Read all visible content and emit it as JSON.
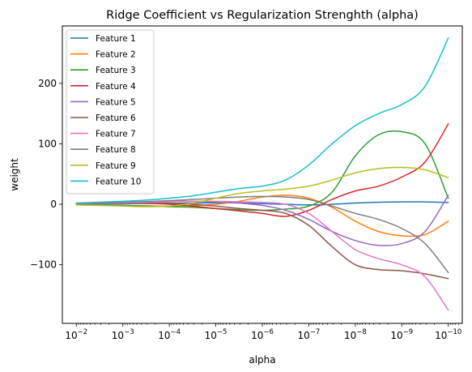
{
  "chart_data": {
    "type": "line",
    "title": "Ridge Coefficient vs Regularization Strenghth (alpha)",
    "xlabel": "alpha",
    "ylabel": "weight",
    "x_scale": "log",
    "x_inverted": true,
    "xlim": [
      0.02,
      5e-11
    ],
    "ylim": [
      -197,
      295
    ],
    "x_ticks": [
      0.01,
      0.001,
      0.0001,
      1e-05,
      1e-06,
      1e-07,
      1e-08,
      1e-09,
      1e-10
    ],
    "x_tick_labels": [
      {
        "base": "10",
        "exp": "−2"
      },
      {
        "base": "10",
        "exp": "−3"
      },
      {
        "base": "10",
        "exp": "−4"
      },
      {
        "base": "10",
        "exp": "−5"
      },
      {
        "base": "10",
        "exp": "−6"
      },
      {
        "base": "10",
        "exp": "−7"
      },
      {
        "base": "10",
        "exp": "−8"
      },
      {
        "base": "10",
        "exp": "−9"
      },
      {
        "base": "10",
        "exp": "−10"
      }
    ],
    "y_ticks": [
      -100,
      0,
      100,
      200
    ],
    "y_tick_labels": [
      "−100",
      "0",
      "100",
      "200"
    ],
    "grid": false,
    "legend_position": "upper-left",
    "x": [
      0.01,
      0.0031623,
      0.001,
      0.00031623,
      0.0001,
      3.1623e-05,
      1e-05,
      3.1623e-06,
      1e-06,
      3.1623e-07,
      1e-07,
      3.1623e-08,
      1e-08,
      3.1623e-09,
      1e-09,
      3.1623e-10,
      1e-10
    ],
    "series": [
      {
        "name": "Feature 1",
        "color": "#1f77b4",
        "values": [
          0.3,
          0.5,
          0.8,
          1.2,
          1.5,
          2.0,
          2.5,
          2.2,
          1.0,
          0,
          -1,
          0,
          2,
          3.5,
          4,
          4,
          3
        ]
      },
      {
        "name": "Feature 2",
        "color": "#ff7f0e",
        "values": [
          -1,
          -1.5,
          -2,
          -2.5,
          -3,
          -2,
          0,
          5,
          12,
          15,
          10,
          -5,
          -28,
          -45,
          -52,
          -50,
          -28
        ]
      },
      {
        "name": "Feature 3",
        "color": "#2ca02c",
        "values": [
          -1,
          -1.5,
          -2,
          -3,
          -4,
          -5,
          -7,
          -9,
          -10,
          -8,
          -3,
          20,
          80,
          115,
          120,
          100,
          10
        ]
      },
      {
        "name": "Feature 4",
        "color": "#d62728",
        "values": [
          1,
          1.5,
          2,
          1.5,
          0,
          -3,
          -7,
          -11,
          -15,
          -20,
          -10,
          8,
          22,
          30,
          45,
          70,
          133
        ]
      },
      {
        "name": "Feature 5",
        "color": "#9467bd",
        "values": [
          1,
          2,
          3,
          4,
          5,
          5,
          4,
          2,
          -2,
          -10,
          -25,
          -45,
          -60,
          -68,
          -65,
          -45,
          15
        ]
      },
      {
        "name": "Feature 6",
        "color": "#8c564b",
        "values": [
          1,
          1.5,
          2,
          2,
          1.5,
          0,
          -3,
          -7,
          -10,
          -15,
          -35,
          -70,
          -100,
          -108,
          -110,
          -115,
          -123
        ]
      },
      {
        "name": "Feature 7",
        "color": "#e377c2",
        "values": [
          1,
          1.5,
          2,
          3,
          4,
          5,
          5,
          4,
          3,
          0,
          -15,
          -45,
          -75,
          -90,
          -100,
          -120,
          -175
        ]
      },
      {
        "name": "Feature 8",
        "color": "#7f7f7f",
        "values": [
          1,
          2,
          3,
          4.5,
          6,
          8,
          10,
          12,
          13,
          12,
          8,
          -3,
          -15,
          -25,
          -40,
          -65,
          -113
        ]
      },
      {
        "name": "Feature 9",
        "color": "#bcbd22",
        "values": [
          -1,
          -2,
          -3,
          -4,
          -3,
          2,
          10,
          18,
          22,
          25,
          30,
          40,
          52,
          59,
          61,
          57,
          44
        ]
      },
      {
        "name": "Feature 10",
        "color": "#17becf",
        "values": [
          2,
          3.5,
          5,
          7,
          10,
          14,
          20,
          26,
          30,
          40,
          65,
          100,
          130,
          150,
          165,
          195,
          275
        ]
      }
    ]
  }
}
